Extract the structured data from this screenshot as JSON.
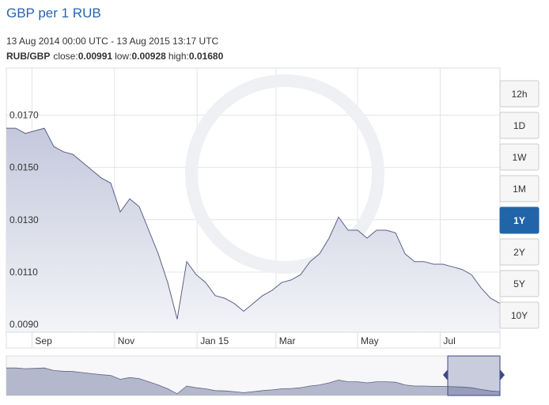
{
  "chart_data": {
    "type": "line",
    "title": "GBP per 1 RUB",
    "subtitle": "13 Aug 2014 00:00 UTC - 13 Aug 2015 13:17 UTC",
    "summary": {
      "pair": "RUB/GBP",
      "stats": [
        {
          "label": "close:",
          "value": "0.00991"
        },
        {
          "label": "low:",
          "value": "0.00928"
        },
        {
          "label": "high:",
          "value": "0.01680"
        }
      ]
    },
    "x": [
      0,
      1,
      2,
      3,
      4,
      5,
      6,
      7,
      8,
      9,
      10,
      11,
      12,
      13,
      14,
      15,
      16,
      17,
      18,
      19,
      20,
      21,
      22,
      23,
      24,
      25,
      26,
      27,
      28,
      29,
      30,
      31,
      32,
      33,
      34,
      35,
      36,
      37,
      38,
      39,
      40,
      41,
      42,
      43,
      44,
      45,
      46,
      47,
      48,
      49,
      50,
      51,
      52
    ],
    "series": [
      {
        "name": "RUB/GBP",
        "color": "#5b6088",
        "values": [
          0.0165,
          0.0165,
          0.0163,
          0.0164,
          0.0165,
          0.0158,
          0.0156,
          0.0155,
          0.0152,
          0.0149,
          0.0146,
          0.0144,
          0.0133,
          0.0138,
          0.0135,
          0.0126,
          0.0117,
          0.0106,
          0.0092,
          0.0114,
          0.0109,
          0.0106,
          0.0101,
          0.01,
          0.0098,
          0.0095,
          0.0098,
          0.0101,
          0.0103,
          0.0106,
          0.0107,
          0.0109,
          0.0114,
          0.0117,
          0.0123,
          0.0131,
          0.0126,
          0.0126,
          0.0123,
          0.0126,
          0.0126,
          0.0125,
          0.0117,
          0.0114,
          0.0114,
          0.0113,
          0.0113,
          0.0112,
          0.0111,
          0.0109,
          0.0104,
          0.01,
          0.0098
        ]
      }
    ],
    "xlim": [
      0,
      52
    ],
    "xticks": [
      {
        "value": 2.7,
        "label": "Sep"
      },
      {
        "value": 11.4,
        "label": "Nov"
      },
      {
        "value": 20.1,
        "label": "Jan 15"
      },
      {
        "value": 28.4,
        "label": "Mar"
      },
      {
        "value": 37.0,
        "label": "May"
      },
      {
        "value": 45.7,
        "label": "Jul"
      }
    ],
    "ylim": [
      0.0087,
      0.0188
    ],
    "yticks": [
      {
        "value": 0.009,
        "label": "0.0090"
      },
      {
        "value": 0.011,
        "label": "0.0110"
      },
      {
        "value": 0.013,
        "label": "0.0130"
      },
      {
        "value": 0.015,
        "label": "0.0150"
      },
      {
        "value": 0.017,
        "label": "0.0170"
      }
    ],
    "grid": true,
    "range_buttons": [
      "12h",
      "1D",
      "1W",
      "1M",
      "1Y",
      "2Y",
      "5Y",
      "10Y"
    ],
    "active_range": "1Y"
  }
}
